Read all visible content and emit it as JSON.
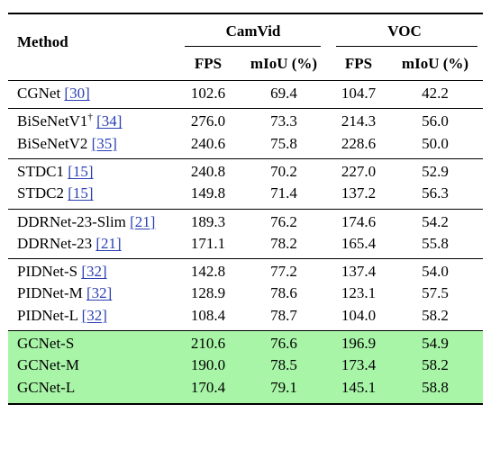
{
  "table": {
    "header": {
      "method": "Method",
      "group1": "CamVid",
      "group2": "VOC",
      "fps": "FPS",
      "miou": "mIoU (%)"
    },
    "groups": [
      {
        "highlight": false,
        "rows": [
          {
            "name": "CGNet",
            "mark": "",
            "ref": "[30]",
            "camvid_fps": "102.6",
            "camvid_miou": "69.4",
            "voc_fps": "104.7",
            "voc_miou": "42.2"
          }
        ]
      },
      {
        "highlight": false,
        "rows": [
          {
            "name": "BiSeNetV1",
            "mark": "†",
            "ref": "[34]",
            "camvid_fps": "276.0",
            "camvid_miou": "73.3",
            "voc_fps": "214.3",
            "voc_miou": "56.0"
          },
          {
            "name": "BiSeNetV2",
            "mark": "",
            "ref": "[35]",
            "camvid_fps": "240.6",
            "camvid_miou": "75.8",
            "voc_fps": "228.6",
            "voc_miou": "50.0"
          }
        ]
      },
      {
        "highlight": false,
        "rows": [
          {
            "name": "STDC1",
            "mark": "",
            "ref": "[15]",
            "camvid_fps": "240.8",
            "camvid_miou": "70.2",
            "voc_fps": "227.0",
            "voc_miou": "52.9"
          },
          {
            "name": "STDC2",
            "mark": "",
            "ref": "[15]",
            "camvid_fps": "149.8",
            "camvid_miou": "71.4",
            "voc_fps": "137.2",
            "voc_miou": "56.3"
          }
        ]
      },
      {
        "highlight": false,
        "rows": [
          {
            "name": "DDRNet-23-Slim",
            "mark": "",
            "ref": "[21]",
            "camvid_fps": "189.3",
            "camvid_miou": "76.2",
            "voc_fps": "174.6",
            "voc_miou": "54.2"
          },
          {
            "name": "DDRNet-23",
            "mark": "",
            "ref": "[21]",
            "camvid_fps": "171.1",
            "camvid_miou": "78.2",
            "voc_fps": "165.4",
            "voc_miou": "55.8"
          }
        ]
      },
      {
        "highlight": false,
        "rows": [
          {
            "name": "PIDNet-S",
            "mark": "",
            "ref": "[32]",
            "camvid_fps": "142.8",
            "camvid_miou": "77.2",
            "voc_fps": "137.4",
            "voc_miou": "54.0"
          },
          {
            "name": "PIDNet-M",
            "mark": "",
            "ref": "[32]",
            "camvid_fps": "128.9",
            "camvid_miou": "78.6",
            "voc_fps": "123.1",
            "voc_miou": "57.5"
          },
          {
            "name": "PIDNet-L",
            "mark": "",
            "ref": "[32]",
            "camvid_fps": "108.4",
            "camvid_miou": "78.7",
            "voc_fps": "104.0",
            "voc_miou": "58.2"
          }
        ]
      },
      {
        "highlight": true,
        "rows": [
          {
            "name": "GCNet-S",
            "mark": "",
            "ref": "",
            "camvid_fps": "210.6",
            "camvid_miou": "76.6",
            "voc_fps": "196.9",
            "voc_miou": "54.9"
          },
          {
            "name": "GCNet-M",
            "mark": "",
            "ref": "",
            "camvid_fps": "190.0",
            "camvid_miou": "78.5",
            "voc_fps": "173.4",
            "voc_miou": "58.2"
          },
          {
            "name": "GCNet-L",
            "mark": "",
            "ref": "",
            "camvid_fps": "170.4",
            "camvid_miou": "79.1",
            "voc_fps": "145.1",
            "voc_miou": "58.8"
          }
        ]
      }
    ]
  }
}
